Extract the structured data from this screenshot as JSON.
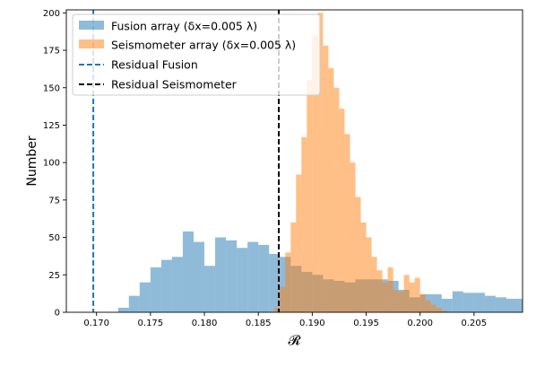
{
  "chart_data": {
    "type": "bar",
    "title": "",
    "xlabel": "𝓡",
    "ylabel": "Number",
    "xlim": [
      0.1672,
      0.2095
    ],
    "ylim": [
      0,
      202
    ],
    "x_ticks": [
      "0.170",
      "0.175",
      "0.180",
      "0.185",
      "0.190",
      "0.195",
      "0.200",
      "0.205"
    ],
    "x_tick_values": [
      0.17,
      0.175,
      0.18,
      0.185,
      0.19,
      0.195,
      0.2,
      0.205
    ],
    "y_ticks": [
      "0",
      "25",
      "50",
      "75",
      "100",
      "125",
      "150",
      "175",
      "200"
    ],
    "y_tick_values": [
      0,
      25,
      50,
      75,
      100,
      125,
      150,
      175,
      200
    ],
    "grid": false,
    "legend_position": "upper-left",
    "series": [
      {
        "name": "Fusion array (δx=0.005 λ)",
        "kind": "histogram",
        "color": "#1f77b4",
        "opacity": 0.5,
        "bin_width": 0.001,
        "bins_start": [
          0.172,
          0.173,
          0.174,
          0.175,
          0.176,
          0.177,
          0.178,
          0.179,
          0.18,
          0.181,
          0.182,
          0.183,
          0.184,
          0.185,
          0.186,
          0.187,
          0.188,
          0.189,
          0.19,
          0.191,
          0.192,
          0.193,
          0.194,
          0.195,
          0.196,
          0.197,
          0.198,
          0.199,
          0.2,
          0.201,
          0.202,
          0.203,
          0.204,
          0.205,
          0.206,
          0.207,
          0.208,
          0.209
        ],
        "values": [
          3,
          11,
          20,
          30,
          35,
          37,
          54,
          47,
          31,
          50,
          48,
          43,
          47,
          45,
          39,
          37,
          31,
          27,
          25,
          22,
          21,
          20,
          22,
          22,
          22,
          21,
          15,
          10,
          12,
          12,
          9,
          14,
          13,
          13,
          11,
          10,
          9,
          9
        ]
      },
      {
        "name": "Seismometer array (δx=0.005 λ)",
        "kind": "histogram",
        "color": "#ff7f0e",
        "opacity": 0.5,
        "bin_width": 0.0005,
        "bins_start": [
          0.1865,
          0.187,
          0.1875,
          0.188,
          0.1885,
          0.189,
          0.1895,
          0.19,
          0.1905,
          0.191,
          0.1915,
          0.192,
          0.1925,
          0.193,
          0.1935,
          0.194,
          0.1945,
          0.195,
          0.1955,
          0.196,
          0.1965,
          0.197,
          0.1975,
          0.198,
          0.1985,
          0.199,
          0.1995,
          0.2,
          0.2005,
          0.201,
          0.2015,
          0.202
        ],
        "values": [
          3,
          17,
          40,
          60,
          92,
          117,
          155,
          185,
          200,
          178,
          163,
          150,
          136,
          119,
          100,
          77,
          60,
          50,
          37,
          28,
          20,
          30,
          15,
          14,
          25,
          20,
          23,
          12,
          8,
          5,
          3,
          1
        ]
      },
      {
        "name": "Residual Fusion",
        "kind": "vline",
        "color": "#1f77b4",
        "style": "dashed",
        "x": 0.1697
      },
      {
        "name": "Residual Seismometer",
        "kind": "vline",
        "color": "#000000",
        "style": "dashed",
        "x": 0.1869
      }
    ]
  }
}
